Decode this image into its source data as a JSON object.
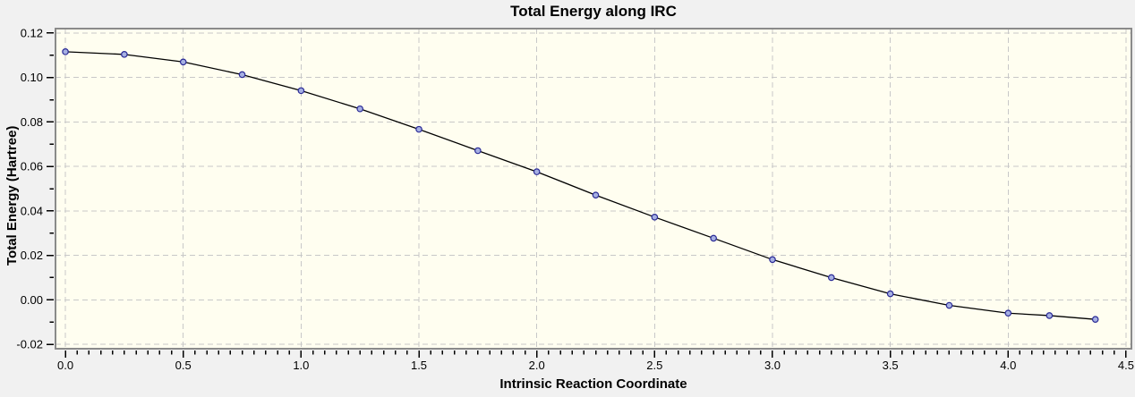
{
  "chart_data": {
    "type": "line",
    "title": "Total Energy along IRC",
    "xlabel": "Intrinsic Reaction Coordinate",
    "ylabel": "Total Energy (Hartree)",
    "x": [
      0.0,
      0.25,
      0.5,
      0.75,
      1.0,
      1.25,
      1.5,
      1.75,
      2.0,
      2.25,
      2.5,
      2.75,
      3.0,
      3.25,
      3.5,
      3.75,
      4.0,
      4.175,
      4.37
    ],
    "y": [
      0.1116,
      0.1104,
      0.107,
      0.1013,
      0.0941,
      0.0859,
      0.0767,
      0.0671,
      0.0576,
      0.0471,
      0.0372,
      0.0277,
      0.0181,
      0.01,
      0.0027,
      -0.0025,
      -0.006,
      -0.0071,
      -0.0088
    ],
    "xlim": [
      -0.042,
      4.523
    ],
    "ylim": [
      -0.022,
      0.122
    ],
    "x_major_ticks": [
      0.0,
      0.5,
      1.0,
      1.5,
      2.0,
      2.5,
      3.0,
      3.5,
      4.0,
      4.5
    ],
    "x_tick_labels": [
      "0.0",
      "0.5",
      "1.0",
      "1.5",
      "2.0",
      "2.5",
      "3.0",
      "3.5",
      "4.0",
      "4.5"
    ],
    "x_minor_step": 0.05,
    "y_major_ticks": [
      -0.02,
      0.0,
      0.02,
      0.04,
      0.06,
      0.08,
      0.1,
      0.12
    ],
    "y_tick_labels": [
      "-0.02",
      "0.00",
      "0.02",
      "0.04",
      "0.06",
      "0.08",
      "0.10",
      "0.12"
    ],
    "y_minor_step": 0.01,
    "grid": "dashed major gridlines, both axes",
    "legend": "none",
    "marker": "circle",
    "colors": {
      "outer_bg": "#f1f1f1",
      "plot_bg": "#fffef0",
      "frame": "#8a8a8a",
      "grid": "#c8c8c8",
      "line": "#000000",
      "marker_fill": "#a6b0e2",
      "marker_edge": "#2a2a96",
      "text": "#000000"
    }
  }
}
